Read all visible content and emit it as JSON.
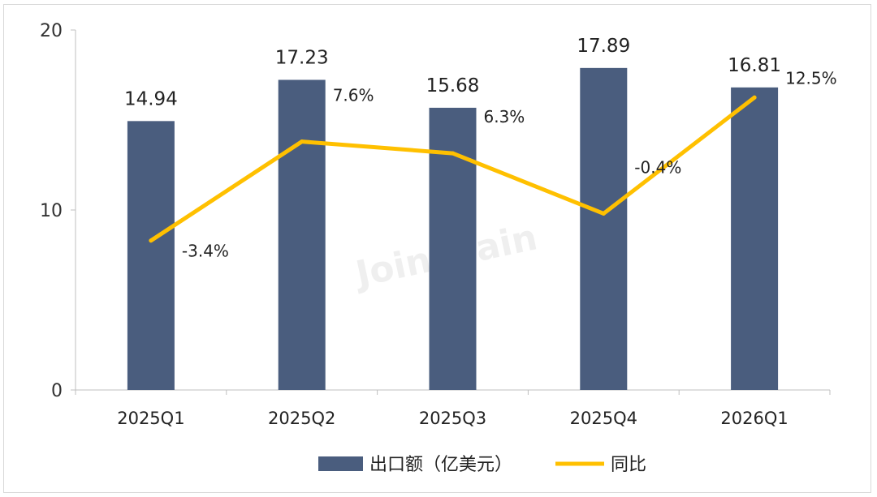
{
  "chart_data": {
    "type": "bar",
    "categories": [
      "2025Q1",
      "2025Q2",
      "2025Q3",
      "2025Q4",
      "2026Q1"
    ],
    "series": [
      {
        "name": "出口额（亿美元）",
        "type": "bar",
        "axis": "left",
        "values": [
          14.94,
          17.23,
          15.68,
          17.89,
          16.81
        ],
        "labels": [
          "14.94",
          "17.23",
          "15.68",
          "17.89",
          "16.81"
        ],
        "color": "#4a5d7e"
      },
      {
        "name": "同比",
        "type": "line",
        "axis": "right-hidden",
        "values": [
          -3.4,
          7.6,
          6.3,
          -0.4,
          12.5
        ],
        "labels": [
          "-3.4%",
          "7.6%",
          "6.3%",
          "-0.4%",
          "12.5%"
        ],
        "color": "#ffc000"
      }
    ],
    "yticks": [
      "0",
      "10",
      "20"
    ],
    "ylim": [
      0,
      20
    ],
    "grid": false,
    "legend_position": "bottom",
    "watermark": "Joinchain"
  }
}
